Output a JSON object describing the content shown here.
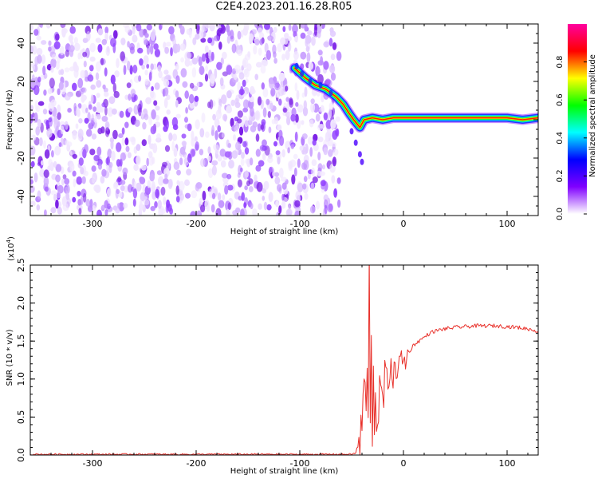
{
  "title": "C2E4.2023.201.16.28.R05",
  "chart_data": [
    {
      "type": "heatmap",
      "title": "C2E4.2023.201.16.28.R05",
      "xlabel": "Height of straight line (km)",
      "ylabel": "Frequency (Hz)",
      "xlim": [
        -360,
        130
      ],
      "ylim": [
        -50,
        50
      ],
      "xticks": [
        -300,
        -200,
        -100,
        0,
        100
      ],
      "yticks": [
        -40,
        -20,
        0,
        20,
        40
      ],
      "noise_region_x": [
        -360,
        -62
      ],
      "ridge": {
        "x": [
          -105,
          -95,
          -85,
          -75,
          -65,
          -58,
          -52,
          -48,
          -45,
          -42,
          -38,
          -30,
          -20,
          -10,
          0,
          20,
          40,
          60,
          80,
          100,
          115,
          130
        ],
        "y": [
          27,
          22,
          18,
          16,
          12,
          8,
          3,
          0,
          -2,
          -4,
          0,
          1,
          0,
          1,
          1,
          1,
          1,
          1,
          1,
          1,
          0,
          1
        ]
      },
      "colorbar": {
        "label": "Normalized spectral amplitude",
        "ticks": [
          0.0,
          0.2,
          0.4,
          0.6,
          0.8
        ],
        "range": [
          0,
          1
        ],
        "colors": [
          "#ffffff",
          "#8000ff",
          "#0000ff",
          "#00ffff",
          "#00ff00",
          "#ffff00",
          "#ff0000",
          "#ff00a0"
        ]
      },
      "grid": false
    },
    {
      "type": "line",
      "xlabel": "Height of straight line (km)",
      "ylabel": "SNR (10 * v/v)",
      "yscale_label": "(x10",
      "yscale_exp": "4",
      "xlim": [
        -360,
        130
      ],
      "ylim": [
        0,
        2.5
      ],
      "xticks": [
        -300,
        -200,
        -100,
        0,
        100
      ],
      "yticks": [
        0.0,
        0.5,
        1.0,
        1.5,
        2.0,
        2.5
      ],
      "series": [
        {
          "color": "#e8302a",
          "x": [
            -360,
            -300,
            -200,
            -100,
            -50,
            -45,
            -40,
            -38,
            -36,
            -35,
            -34,
            -33,
            -32,
            -31,
            -30,
            -29,
            -28,
            -27,
            -26,
            -25,
            -24,
            -22,
            -20,
            -18,
            -15,
            -12,
            -10,
            -8,
            -5,
            -2,
            0,
            5,
            10,
            15,
            20,
            25,
            30,
            40,
            50,
            60,
            70,
            80,
            90,
            100,
            110,
            120,
            130
          ],
          "y": [
            0.01,
            0.01,
            0.01,
            0.01,
            0.01,
            0.03,
            0.3,
            1.1,
            0.4,
            1.4,
            0.3,
            2.5,
            0.2,
            1.8,
            0.4,
            1.2,
            0.3,
            0.9,
            0.4,
            0.7,
            0.5,
            0.9,
            0.6,
            1.1,
            0.9,
            1.3,
            0.9,
            1.2,
            1.1,
            1.3,
            1.2,
            1.35,
            1.45,
            1.5,
            1.55,
            1.6,
            1.63,
            1.66,
            1.68,
            1.69,
            1.7,
            1.7,
            1.7,
            1.69,
            1.68,
            1.66,
            1.63
          ]
        }
      ],
      "grid": false
    }
  ]
}
